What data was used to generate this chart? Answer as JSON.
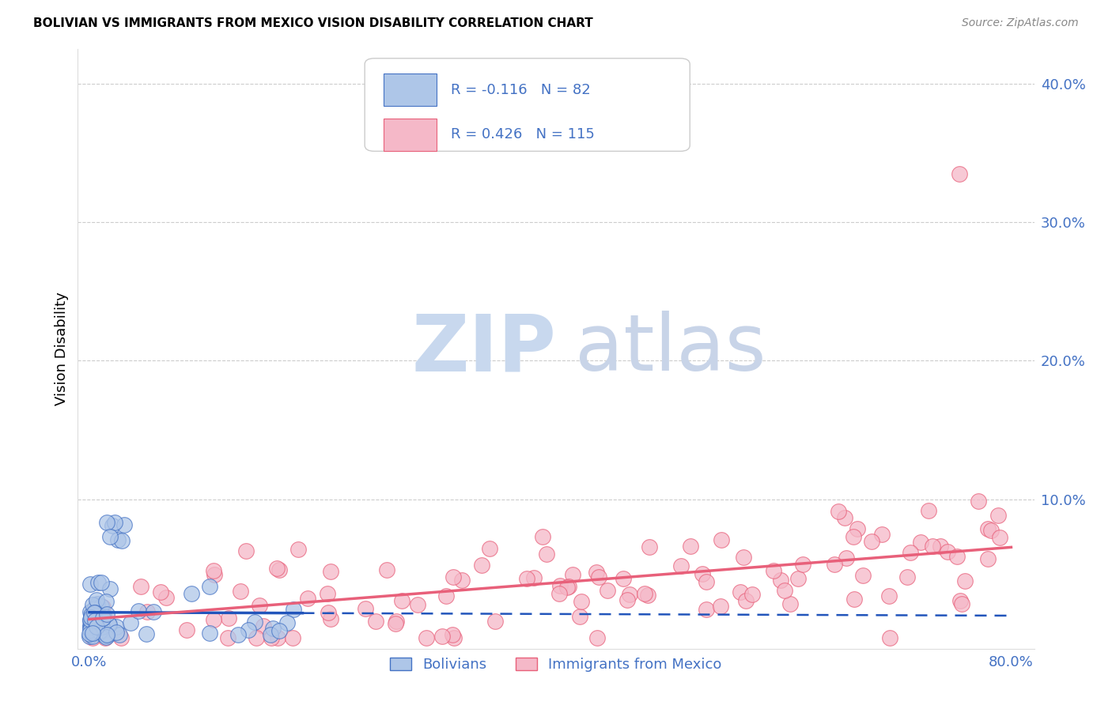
{
  "title": "BOLIVIAN VS IMMIGRANTS FROM MEXICO VISION DISABILITY CORRELATION CHART",
  "source": "Source: ZipAtlas.com",
  "ylabel": "Vision Disability",
  "r_bolivian": -0.116,
  "n_bolivian": 82,
  "r_mexico": 0.426,
  "n_mexico": 115,
  "color_bolivian_fill": "#aec6e8",
  "color_bolivian_edge": "#4472c4",
  "color_mexico_fill": "#f5b8c8",
  "color_mexico_edge": "#e8607a",
  "color_line_bolivian": "#2255bb",
  "color_line_mexico": "#e8607a",
  "background": "#ffffff",
  "ytick_color": "#4472c4",
  "xtick_color": "#4472c4"
}
